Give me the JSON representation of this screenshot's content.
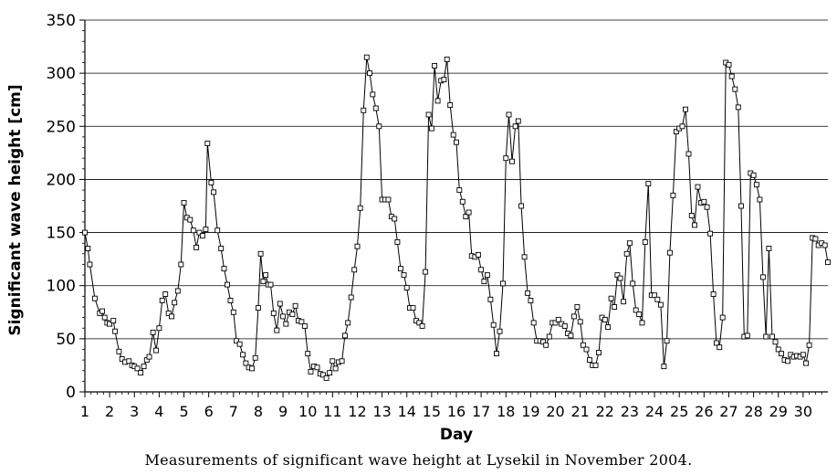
{
  "caption": "Measurements of significant wave height at Lysekil in November 2004.",
  "chart_data": {
    "type": "line",
    "xlabel": "Day",
    "ylabel": "Significant wave height [cm]",
    "xlim": [
      1,
      31
    ],
    "ylim": [
      0,
      350
    ],
    "x_ticks": [
      1,
      2,
      3,
      4,
      5,
      6,
      7,
      8,
      9,
      10,
      11,
      12,
      13,
      14,
      15,
      16,
      17,
      18,
      19,
      20,
      21,
      22,
      23,
      24,
      25,
      26,
      27,
      28,
      29,
      30
    ],
    "y_ticks": [
      0,
      50,
      100,
      150,
      200,
      250,
      300,
      350
    ],
    "grid": "horizontal",
    "legend": "none",
    "marker": "square",
    "line_color": "#000000",
    "series": [
      {
        "x": [
          1.0,
          1.12,
          1.2,
          1.4,
          1.6,
          1.7,
          1.8,
          1.9,
          2.0,
          2.15,
          2.22,
          2.38,
          2.5,
          2.62,
          2.78,
          2.9,
          3.0,
          3.12,
          3.25,
          3.38,
          3.5,
          3.6,
          3.75,
          3.88,
          4.0,
          4.12,
          4.25,
          4.38,
          4.5,
          4.62,
          4.75,
          4.88,
          5.0,
          5.12,
          5.25,
          5.38,
          5.5,
          5.62,
          5.75,
          5.88,
          5.95,
          6.1,
          6.2,
          6.35,
          6.5,
          6.62,
          6.75,
          6.88,
          7.0,
          7.12,
          7.25,
          7.38,
          7.5,
          7.62,
          7.75,
          7.88,
          8.0,
          8.1,
          8.2,
          8.3,
          8.4,
          8.5,
          8.62,
          8.75,
          8.88,
          9.0,
          9.12,
          9.25,
          9.38,
          9.5,
          9.62,
          9.75,
          9.88,
          10.0,
          10.12,
          10.25,
          10.38,
          10.5,
          10.62,
          10.75,
          10.88,
          11.0,
          11.12,
          11.25,
          11.38,
          11.5,
          11.62,
          11.75,
          11.88,
          12.0,
          12.12,
          12.25,
          12.38,
          12.5,
          12.62,
          12.75,
          12.88,
          13.0,
          13.12,
          13.25,
          13.38,
          13.5,
          13.62,
          13.75,
          13.88,
          14.0,
          14.12,
          14.25,
          14.38,
          14.5,
          14.62,
          14.75,
          14.88,
          15.0,
          15.12,
          15.25,
          15.38,
          15.5,
          15.62,
          15.75,
          15.88,
          16.0,
          16.12,
          16.25,
          16.38,
          16.5,
          16.62,
          16.75,
          16.88,
          17.0,
          17.12,
          17.25,
          17.38,
          17.5,
          17.62,
          17.75,
          17.88,
          18.0,
          18.12,
          18.25,
          18.38,
          18.5,
          18.62,
          18.75,
          18.88,
          19.0,
          19.12,
          19.25,
          19.38,
          19.5,
          19.62,
          19.75,
          19.88,
          20.0,
          20.12,
          20.25,
          20.38,
          20.5,
          20.62,
          20.75,
          20.88,
          21.0,
          21.12,
          21.25,
          21.38,
          21.5,
          21.62,
          21.75,
          21.88,
          22.0,
          22.12,
          22.25,
          22.38,
          22.5,
          22.62,
          22.75,
          22.88,
          23.0,
          23.12,
          23.25,
          23.38,
          23.5,
          23.62,
          23.75,
          23.88,
          24.0,
          24.12,
          24.25,
          24.38,
          24.5,
          24.62,
          24.75,
          24.88,
          25.0,
          25.12,
          25.25,
          25.38,
          25.5,
          25.62,
          25.75,
          25.88,
          26.0,
          26.12,
          26.25,
          26.38,
          26.5,
          26.62,
          26.75,
          26.88,
          27.0,
          27.12,
          27.25,
          27.38,
          27.5,
          27.62,
          27.75,
          27.88,
          28.0,
          28.12,
          28.25,
          28.38,
          28.5,
          28.62,
          28.75,
          28.88,
          29.0,
          29.12,
          29.25,
          29.38,
          29.5,
          29.62,
          29.75,
          29.88,
          30.0,
          30.12,
          30.25,
          30.38,
          30.5,
          30.62,
          30.75,
          30.88,
          31.0
        ],
        "y": [
          150,
          135,
          120,
          88,
          74,
          76,
          70,
          65,
          64,
          67,
          57,
          38,
          31,
          28,
          29,
          25,
          24,
          22,
          18,
          24,
          30,
          33,
          56,
          39,
          60,
          86,
          92,
          74,
          71,
          84,
          95,
          120,
          178,
          164,
          162,
          152,
          136,
          150,
          147,
          153,
          234,
          197,
          188,
          152,
          135,
          116,
          101,
          86,
          75,
          48,
          45,
          35,
          27,
          23,
          22,
          32,
          79,
          130,
          104,
          110,
          101,
          101,
          74,
          58,
          83,
          71,
          64,
          75,
          73,
          81,
          67,
          66,
          62,
          36,
          19,
          24,
          23,
          17,
          16,
          13,
          18,
          29,
          22,
          28,
          29,
          53,
          65,
          89,
          115,
          137,
          173,
          265,
          315,
          300,
          280,
          267,
          250,
          181,
          181,
          181,
          165,
          163,
          141,
          116,
          110,
          98,
          79,
          79,
          67,
          65,
          62,
          113,
          261,
          248,
          307,
          274,
          293,
          294,
          313,
          270,
          242,
          235,
          190,
          179,
          165,
          169,
          128,
          127,
          129,
          115,
          104,
          110,
          87,
          63,
          36,
          57,
          102,
          220,
          261,
          217,
          250,
          255,
          175,
          127,
          93,
          86,
          65,
          48,
          48,
          47,
          44,
          52,
          65,
          65,
          68,
          64,
          62,
          55,
          53,
          71,
          80,
          66,
          44,
          40,
          30,
          25,
          25,
          37,
          70,
          68,
          61,
          88,
          80,
          110,
          107,
          85,
          130,
          140,
          102,
          77,
          73,
          65,
          141,
          196,
          91,
          91,
          87,
          82,
          24,
          48,
          131,
          185,
          245,
          248,
          250,
          266,
          224,
          166,
          157,
          193,
          178,
          179,
          174,
          149,
          92,
          46,
          42,
          70,
          310,
          308,
          297,
          285,
          268,
          175,
          52,
          53,
          206,
          204,
          195,
          181,
          108,
          52,
          135,
          52,
          47,
          40,
          36,
          30,
          29,
          35,
          33,
          34,
          33,
          35,
          27,
          44,
          145,
          144,
          138,
          140,
          138,
          122
        ]
      }
    ]
  }
}
